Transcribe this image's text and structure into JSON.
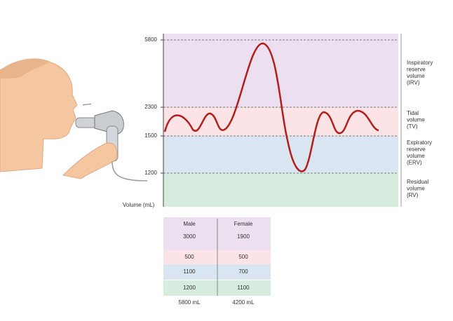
{
  "y_axis": {
    "title": "Volume (mL)",
    "ticks": [
      "5800",
      "2300",
      "1500",
      "1200"
    ]
  },
  "regions": [
    {
      "lines": [
        "Inspiratory",
        "reserve",
        "volume",
        "(IRV)"
      ]
    },
    {
      "lines": [
        "Tidal",
        "volume",
        "(TV)"
      ]
    },
    {
      "lines": [
        "Expiratory",
        "reserve",
        "volume",
        "(ERV)"
      ]
    },
    {
      "lines": [
        "Residual",
        "volume",
        "(RV)"
      ]
    }
  ],
  "table": {
    "columns": [
      "Male",
      "Female"
    ],
    "rows": [
      [
        "3000",
        "1900"
      ],
      [
        "500",
        "500"
      ],
      [
        "1100",
        "700"
      ],
      [
        "1200",
        "1100"
      ]
    ],
    "totals": [
      "5800 mL",
      "4200 mL"
    ]
  }
}
